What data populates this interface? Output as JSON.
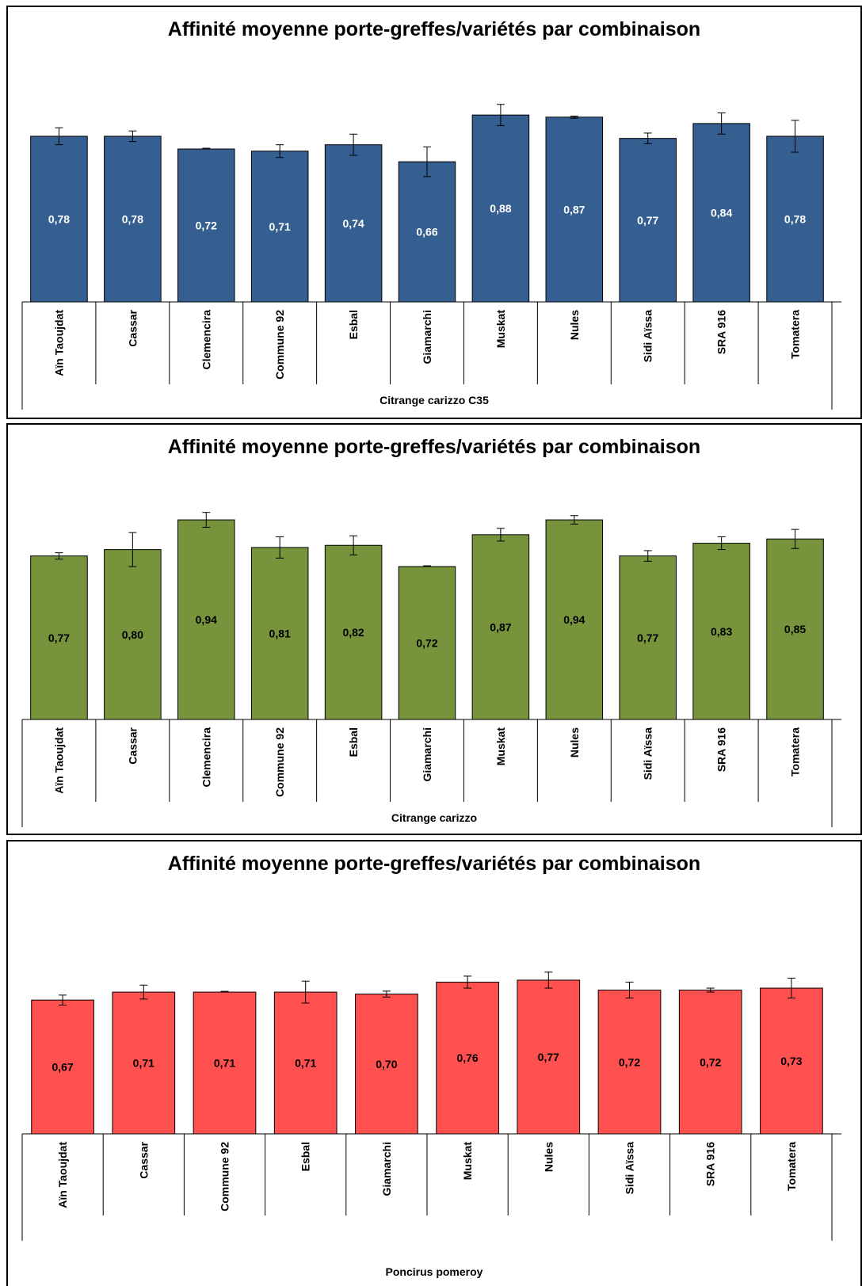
{
  "charts": [
    {
      "title": "Affinité moyenne porte-greffes/variétés par combinaison",
      "group_label": "Citrange carizzo C35",
      "bar_color": "#365F91",
      "label_color": "#ffffff"
    },
    {
      "title": "Affinité moyenne porte-greffes/variétés par combinaison",
      "group_label": "Citrange carizzo",
      "bar_color": "#77933C",
      "label_color": "#000000"
    },
    {
      "title": "Affinité moyenne porte-greffes/variétés par combinaison",
      "group_label": "Poncirus pomeroy",
      "bar_color": "#FF5050",
      "label_color": "#000000"
    }
  ],
  "chart_data": [
    {
      "type": "bar",
      "title": "Affinité moyenne porte-greffes/variétés par combinaison",
      "xlabel": "Citrange carizzo C35",
      "ylim": [
        0,
        1.1
      ],
      "grid": false,
      "categories": [
        "Aïn Taoujdat",
        "Cassar",
        "Clemencira",
        "Commune 92",
        "Esbal",
        "Giamarchi",
        "Muskat",
        "Nules",
        "Sidi Aïssa",
        "SRA 916",
        "Tomatera"
      ],
      "values": [
        0.78,
        0.78,
        0.72,
        0.71,
        0.74,
        0.66,
        0.88,
        0.87,
        0.77,
        0.84,
        0.78
      ],
      "labels": [
        "0,78",
        "0,78",
        "0,72",
        "0,71",
        "0,74",
        "0,66",
        "0,88",
        "0,87",
        "0,77",
        "0,84",
        "0,78"
      ],
      "errors": [
        0.08,
        0.05,
        0,
        0.06,
        0.1,
        0.14,
        0.1,
        0.01,
        0.05,
        0.1,
        0.15
      ]
    },
    {
      "type": "bar",
      "title": "Affinité moyenne porte-greffes/variétés par combinaison",
      "xlabel": "Citrange carizzo",
      "ylim": [
        0,
        1.1
      ],
      "grid": false,
      "categories": [
        "Aïn Taoujdat",
        "Cassar",
        "Clemencira",
        "Commune 92",
        "Esbal",
        "Giamarchi",
        "Muskat",
        "Nules",
        "Sidi Aïssa",
        "SRA 916",
        "Tomatera"
      ],
      "values": [
        0.77,
        0.8,
        0.94,
        0.81,
        0.82,
        0.72,
        0.87,
        0.94,
        0.77,
        0.83,
        0.85
      ],
      "labels": [
        "0,77",
        "0,80",
        "0,94",
        "0,81",
        "0,82",
        "0,72",
        "0,87",
        "0,94",
        "0,77",
        "0,83",
        "0,85"
      ],
      "errors": [
        0.03,
        0.16,
        0.07,
        0.1,
        0.09,
        0,
        0.06,
        0.04,
        0.05,
        0.06,
        0.09
      ]
    },
    {
      "type": "bar",
      "title": "Affinité moyenne porte-greffes/variétés par combinaison",
      "xlabel": "Poncirus pomeroy",
      "ylim": [
        0,
        0.98
      ],
      "grid": false,
      "categories": [
        "Aïn Taoujdat",
        "Cassar",
        "Commune 92",
        "Esbal",
        "Giamarchi",
        "Muskat",
        "Nules",
        "Sidi Aïssa",
        "SRA 916",
        "Tomatera"
      ],
      "values": [
        0.67,
        0.71,
        0.71,
        0.71,
        0.7,
        0.76,
        0.77,
        0.72,
        0.72,
        0.73
      ],
      "labels": [
        "0,67",
        "0,71",
        "0,71",
        "0,71",
        "0,70",
        "0,76",
        "0,77",
        "0,72",
        "0,72",
        "0,73"
      ],
      "errors": [
        0.05,
        0.07,
        0.002,
        0.11,
        0.03,
        0.06,
        0.08,
        0.08,
        0.02,
        0.1
      ]
    }
  ]
}
